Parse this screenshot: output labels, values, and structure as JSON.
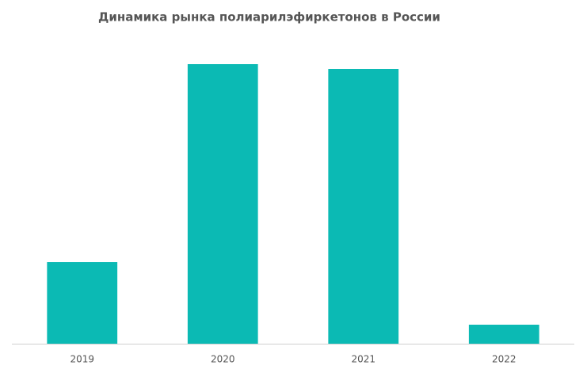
{
  "chart_data": {
    "type": "bar",
    "title": "Динамика рынка полиарилэфиркетонов в России",
    "categories": [
      "2019",
      "2020",
      "2021",
      "2022"
    ],
    "values": [
      103,
      353,
      347,
      24
    ],
    "color": "#0bbab4"
  }
}
